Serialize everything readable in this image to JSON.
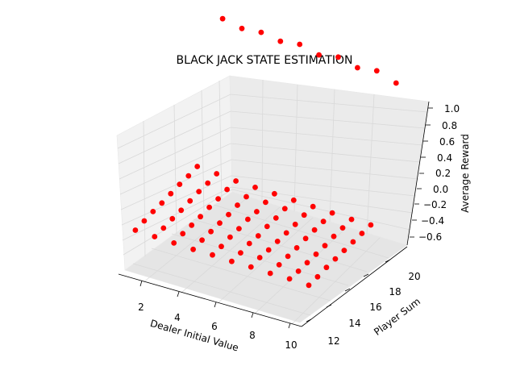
{
  "chart_data": {
    "type": "scatter3d",
    "title": "BLACK JACK STATE ESTIMATION",
    "xlabel": "Dealer Initial Value",
    "ylabel": "Player Sum",
    "zlabel": "Average Reward",
    "x_ticks": [
      "2",
      "4",
      "6",
      "8",
      "10"
    ],
    "y_ticks": [
      "12",
      "14",
      "16",
      "18",
      "20"
    ],
    "z_ticks": [
      "−0.6",
      "−0.4",
      "−0.2",
      "0.0",
      "0.2",
      "0.4",
      "0.6",
      "0.8",
      "1.0"
    ],
    "xlim": [
      1,
      10
    ],
    "ylim": [
      11,
      21
    ],
    "zlim": [
      -0.7,
      1.05
    ],
    "grid": true,
    "marker_color": "#ff0000",
    "series": [
      {
        "x": [
          1,
          2,
          3,
          4,
          5,
          6,
          7,
          8,
          9,
          10
        ],
        "y": [
          11,
          11,
          11,
          11,
          11,
          11,
          11,
          11,
          11,
          11
        ],
        "z": [
          -0.6,
          -0.61,
          -0.62,
          -0.63,
          -0.63,
          -0.64,
          -0.64,
          -0.65,
          -0.65,
          -0.66
        ]
      },
      {
        "x": [
          1,
          2,
          3,
          4,
          5,
          6,
          7,
          8,
          9,
          10
        ],
        "y": [
          12,
          12,
          12,
          12,
          12,
          12,
          12,
          12,
          12,
          12
        ],
        "z": [
          -0.58,
          -0.6,
          -0.6,
          -0.61,
          -0.62,
          -0.63,
          -0.62,
          -0.64,
          -0.65,
          -0.65
        ]
      },
      {
        "x": [
          1,
          2,
          3,
          4,
          5,
          6,
          7,
          8,
          9,
          10
        ],
        "y": [
          13,
          13,
          13,
          13,
          13,
          13,
          13,
          13,
          13,
          13
        ],
        "z": [
          -0.56,
          -0.58,
          -0.59,
          -0.6,
          -0.6,
          -0.61,
          -0.62,
          -0.63,
          -0.64,
          -0.63
        ]
      },
      {
        "x": [
          1,
          2,
          3,
          4,
          5,
          6,
          7,
          8,
          9,
          10
        ],
        "y": [
          14,
          14,
          14,
          14,
          14,
          14,
          14,
          14,
          14,
          14
        ],
        "z": [
          -0.55,
          -0.57,
          -0.58,
          -0.59,
          -0.59,
          -0.61,
          -0.61,
          -0.62,
          -0.63,
          -0.62
        ]
      },
      {
        "x": [
          1,
          2,
          3,
          4,
          5,
          6,
          7,
          8,
          9,
          10
        ],
        "y": [
          15,
          15,
          15,
          15,
          15,
          15,
          15,
          15,
          15,
          15
        ],
        "z": [
          -0.53,
          -0.55,
          -0.56,
          -0.58,
          -0.57,
          -0.59,
          -0.6,
          -0.6,
          -0.62,
          -0.61
        ]
      },
      {
        "x": [
          1,
          2,
          3,
          4,
          5,
          6,
          7,
          8,
          9,
          10
        ],
        "y": [
          16,
          16,
          16,
          16,
          16,
          16,
          16,
          16,
          16,
          16
        ],
        "z": [
          -0.51,
          -0.53,
          -0.55,
          -0.56,
          -0.57,
          -0.58,
          -0.59,
          -0.59,
          -0.6,
          -0.6
        ]
      },
      {
        "x": [
          1,
          2,
          3,
          4,
          5,
          6,
          7,
          8,
          9,
          10
        ],
        "y": [
          17,
          17,
          17,
          17,
          17,
          17,
          17,
          17,
          17,
          17
        ],
        "z": [
          -0.5,
          -0.52,
          -0.53,
          -0.55,
          -0.55,
          -0.56,
          -0.57,
          -0.58,
          -0.59,
          -0.59
        ]
      },
      {
        "x": [
          1,
          2,
          3,
          4,
          5,
          6,
          7,
          8,
          9,
          10
        ],
        "y": [
          18,
          18,
          18,
          18,
          18,
          18,
          18,
          18,
          18,
          18
        ],
        "z": [
          -0.48,
          -0.5,
          -0.52,
          -0.53,
          -0.54,
          -0.55,
          -0.56,
          -0.57,
          -0.58,
          -0.58
        ]
      },
      {
        "x": [
          1,
          2,
          3,
          4,
          5,
          6,
          7,
          8,
          9,
          10
        ],
        "y": [
          21,
          21,
          21,
          21,
          21,
          21,
          21,
          21,
          21,
          21
        ],
        "z": [
          1.0,
          0.95,
          0.97,
          0.93,
          0.96,
          0.9,
          0.94,
          0.88,
          0.91,
          0.83
        ]
      }
    ]
  }
}
